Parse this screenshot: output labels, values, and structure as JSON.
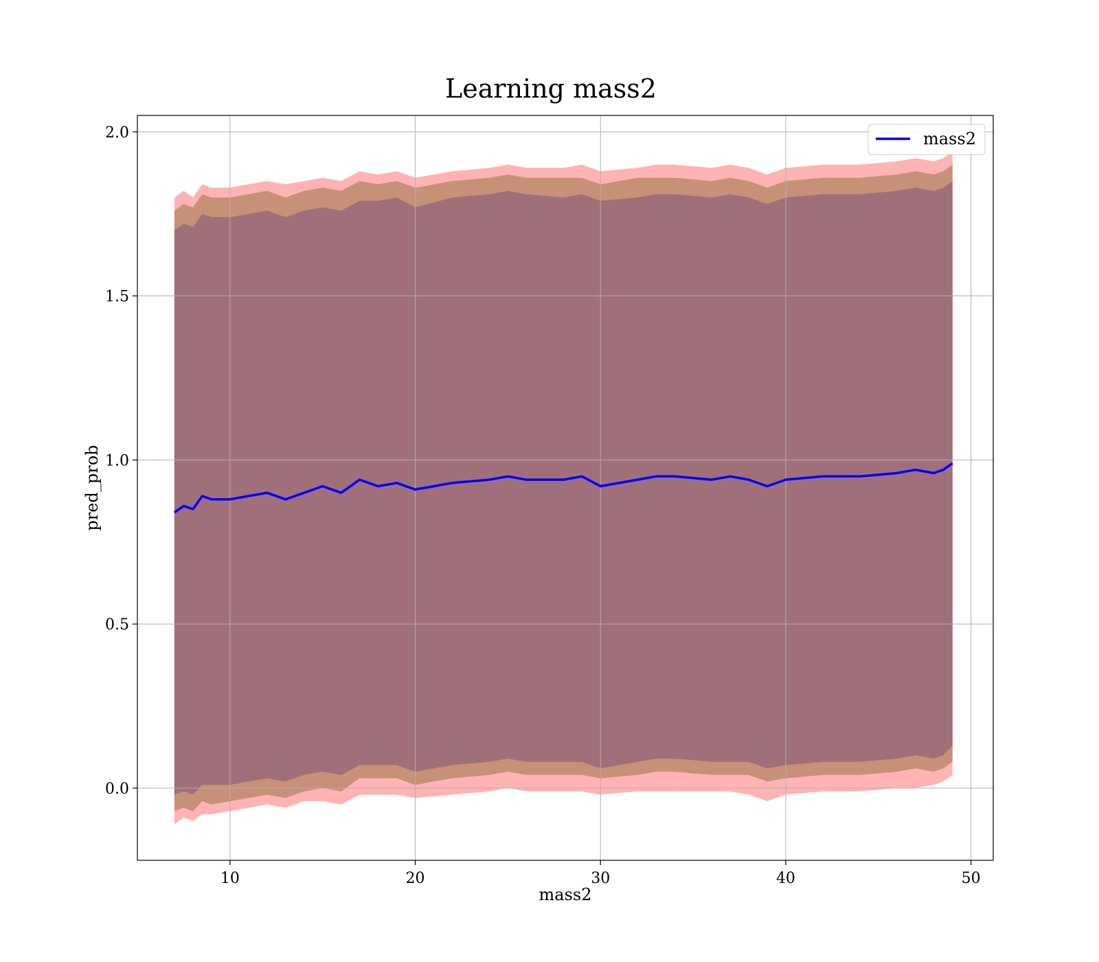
{
  "chart_data": {
    "type": "line",
    "title": "Learning mass2",
    "xlabel": "mass2",
    "ylabel": "pred_prob",
    "xlim": [
      5,
      51.2
    ],
    "ylim": [
      -0.22,
      2.05
    ],
    "xticks": [
      10,
      20,
      30,
      40,
      50
    ],
    "yticks": [
      0.0,
      0.5,
      1.0,
      1.5,
      2.0
    ],
    "ytick_labels": [
      "0.0",
      "0.5",
      "1.0",
      "1.5",
      "2.0"
    ],
    "grid": true,
    "legend": {
      "placement": "top-right",
      "entries": [
        "mass2"
      ]
    },
    "colors": {
      "line": "#0000ff",
      "band_inner": "#a0707a",
      "band_mid": "#c79177",
      "band_outer": "#ffb3b3"
    },
    "series": [
      {
        "name": "mass2",
        "x": [
          7.0,
          7.5,
          8.0,
          8.5,
          9.0,
          10.0,
          11.0,
          12.0,
          13.0,
          14.0,
          15.0,
          16.0,
          17.0,
          18.0,
          19.0,
          20.0,
          22.0,
          24.0,
          25.0,
          26.0,
          28.0,
          29.0,
          30.0,
          32.0,
          33.0,
          34.0,
          36.0,
          37.0,
          38.0,
          39.0,
          40.0,
          42.0,
          44.0,
          46.0,
          47.0,
          48.0,
          48.5,
          49.0
        ],
        "values": [
          0.84,
          0.86,
          0.85,
          0.89,
          0.88,
          0.88,
          0.89,
          0.9,
          0.88,
          0.9,
          0.92,
          0.9,
          0.94,
          0.92,
          0.93,
          0.91,
          0.93,
          0.94,
          0.95,
          0.94,
          0.94,
          0.95,
          0.92,
          0.94,
          0.95,
          0.95,
          0.94,
          0.95,
          0.94,
          0.92,
          0.94,
          0.95,
          0.95,
          0.96,
          0.97,
          0.96,
          0.97,
          0.99
        ]
      }
    ],
    "bands": [
      {
        "level": "outer",
        "lower": [
          -0.11,
          -0.09,
          -0.1,
          -0.08,
          -0.08,
          -0.07,
          -0.06,
          -0.05,
          -0.06,
          -0.04,
          -0.04,
          -0.05,
          -0.02,
          -0.02,
          -0.02,
          -0.03,
          -0.02,
          -0.01,
          0.0,
          -0.01,
          -0.01,
          -0.01,
          -0.02,
          -0.01,
          -0.01,
          -0.01,
          -0.01,
          -0.01,
          -0.02,
          -0.04,
          -0.02,
          -0.01,
          -0.01,
          0.0,
          0.0,
          0.01,
          0.02,
          0.04
        ],
        "upper": [
          1.8,
          1.82,
          1.8,
          1.84,
          1.83,
          1.83,
          1.84,
          1.85,
          1.84,
          1.85,
          1.86,
          1.85,
          1.88,
          1.87,
          1.88,
          1.86,
          1.88,
          1.89,
          1.9,
          1.89,
          1.89,
          1.9,
          1.88,
          1.89,
          1.9,
          1.9,
          1.89,
          1.9,
          1.89,
          1.87,
          1.89,
          1.9,
          1.9,
          1.91,
          1.92,
          1.91,
          1.92,
          1.94
        ]
      },
      {
        "level": "mid",
        "lower": [
          -0.07,
          -0.06,
          -0.07,
          -0.04,
          -0.05,
          -0.04,
          -0.03,
          -0.02,
          -0.03,
          -0.01,
          0.0,
          -0.01,
          0.03,
          0.03,
          0.03,
          0.01,
          0.03,
          0.04,
          0.05,
          0.04,
          0.04,
          0.04,
          0.03,
          0.04,
          0.05,
          0.05,
          0.04,
          0.04,
          0.04,
          0.02,
          0.03,
          0.04,
          0.04,
          0.05,
          0.06,
          0.05,
          0.06,
          0.08
        ],
        "upper": [
          1.76,
          1.78,
          1.77,
          1.81,
          1.8,
          1.8,
          1.81,
          1.82,
          1.8,
          1.82,
          1.83,
          1.82,
          1.85,
          1.84,
          1.85,
          1.83,
          1.85,
          1.86,
          1.87,
          1.86,
          1.86,
          1.86,
          1.84,
          1.86,
          1.86,
          1.86,
          1.85,
          1.86,
          1.85,
          1.83,
          1.85,
          1.86,
          1.86,
          1.87,
          1.88,
          1.87,
          1.88,
          1.9
        ]
      },
      {
        "level": "inner",
        "lower": [
          -0.02,
          -0.01,
          -0.02,
          0.01,
          0.01,
          0.01,
          0.02,
          0.03,
          0.02,
          0.04,
          0.05,
          0.04,
          0.07,
          0.07,
          0.07,
          0.05,
          0.07,
          0.08,
          0.09,
          0.08,
          0.08,
          0.08,
          0.06,
          0.08,
          0.09,
          0.09,
          0.08,
          0.08,
          0.08,
          0.06,
          0.07,
          0.08,
          0.08,
          0.09,
          0.1,
          0.09,
          0.1,
          0.13
        ],
        "upper": [
          1.7,
          1.72,
          1.71,
          1.75,
          1.74,
          1.74,
          1.75,
          1.76,
          1.74,
          1.76,
          1.77,
          1.76,
          1.79,
          1.79,
          1.8,
          1.77,
          1.8,
          1.81,
          1.82,
          1.81,
          1.8,
          1.81,
          1.79,
          1.8,
          1.81,
          1.81,
          1.8,
          1.81,
          1.8,
          1.78,
          1.8,
          1.81,
          1.81,
          1.82,
          1.83,
          1.82,
          1.83,
          1.85
        ]
      }
    ]
  }
}
